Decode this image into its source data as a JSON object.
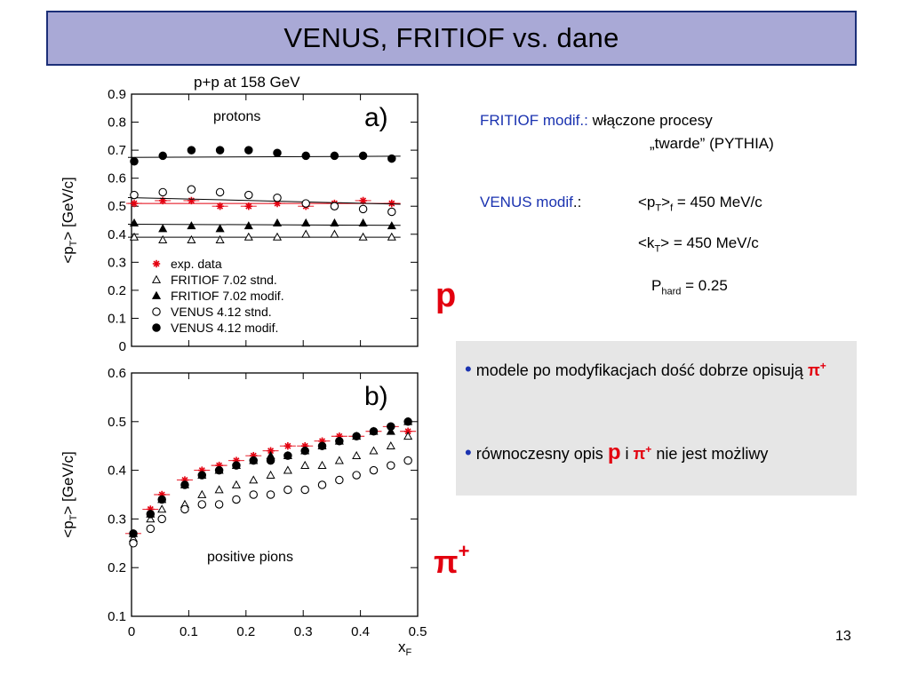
{
  "slide": {
    "title": "VENUS, FRITIOF vs. dane",
    "page_number": "13",
    "fritiof_label": "FRITIOF modif.:",
    "fritiof_text1": "włączone procesy",
    "fritiof_text2": "„twarde”  (PYTHIA)",
    "venus_label": "VENUS modif",
    "venus_colon": ".:",
    "pt_text": "<p",
    "pt_sub": "T",
    "pt_rest": ">",
    "pt_sub2": "f",
    "pt_value": " = 450 MeV/c",
    "kt_text": "<k",
    "kt_sub": "T",
    "kt_rest": ">",
    "kt_value": "  = 450 MeV/c",
    "phard_main": "P",
    "phard_sub": "hard",
    "phard_value": " = 0.25",
    "big_p": "p",
    "big_pi": "π",
    "big_pi_sup": "+",
    "bullet1_text": "modele po modyfikacjach dość dobrze opisują",
    "bullet1_pi": "π",
    "bullet1_sup": "+",
    "bullet2_pre": "równoczesny opis",
    "bullet2_p": "p",
    "bullet2_mid": "i",
    "bullet2_pi": "π",
    "bullet2_sup": "+",
    "bullet2_post": "nie jest możliwy",
    "bullet_symbol": "•"
  },
  "colors": {
    "title_bg": "#a9a9d6",
    "title_border": "#1c2f78",
    "accent_red": "#e3000f",
    "label_blue": "#1b33b0",
    "box_bg": "#e6e6e6"
  },
  "chart_data": [
    {
      "type": "scatter",
      "header": "p+p at 158 GeV",
      "panel": "a)",
      "subtitle": "protons",
      "ylabel": "<p_T> [GeV/c]",
      "ylim": [
        0,
        0.9
      ],
      "yticks": [
        "0.9",
        "0.8",
        "0.7",
        "0.6",
        "0.5",
        "0.4",
        "0.3",
        "0.2",
        "0.1",
        "0"
      ],
      "legend": [
        "exp. data",
        "FRITIOF 7.02  stnd.",
        "FRITIOF 7.02  modif.",
        "VENUS 4.12  stnd.",
        "VENUS 4.12  modif."
      ],
      "legend_position": "bottom-left",
      "series": [
        {
          "name": "exp. data",
          "marker": "star",
          "x": [
            0.0,
            0.05,
            0.1,
            0.15,
            0.2,
            0.25,
            0.3,
            0.35,
            0.4,
            0.45
          ],
          "y": [
            0.51,
            0.52,
            0.52,
            0.5,
            0.5,
            0.51,
            0.5,
            0.51,
            0.52,
            0.51
          ]
        },
        {
          "name": "FRITIOF 7.02  stnd.",
          "marker": "open-triangle",
          "x": [
            0.0,
            0.05,
            0.1,
            0.15,
            0.2,
            0.25,
            0.3,
            0.35,
            0.4,
            0.45
          ],
          "y": [
            0.39,
            0.38,
            0.38,
            0.38,
            0.39,
            0.39,
            0.4,
            0.4,
            0.39,
            0.39
          ]
        },
        {
          "name": "FRITIOF 7.02  modif.",
          "marker": "filled-triangle",
          "x": [
            0.0,
            0.05,
            0.1,
            0.15,
            0.2,
            0.25,
            0.3,
            0.35,
            0.4,
            0.45
          ],
          "y": [
            0.44,
            0.42,
            0.43,
            0.42,
            0.43,
            0.44,
            0.44,
            0.44,
            0.44,
            0.43
          ]
        },
        {
          "name": "VENUS 4.12  stnd.",
          "marker": "open-circle",
          "x": [
            0.0,
            0.05,
            0.1,
            0.15,
            0.2,
            0.25,
            0.3,
            0.35,
            0.4,
            0.45
          ],
          "y": [
            0.54,
            0.55,
            0.56,
            0.55,
            0.54,
            0.53,
            0.51,
            0.5,
            0.49,
            0.48
          ]
        },
        {
          "name": "VENUS 4.12  modif.",
          "marker": "filled-circle",
          "x": [
            0.0,
            0.05,
            0.1,
            0.15,
            0.2,
            0.25,
            0.3,
            0.35,
            0.4,
            0.45
          ],
          "y": [
            0.66,
            0.68,
            0.7,
            0.7,
            0.7,
            0.69,
            0.68,
            0.68,
            0.68,
            0.67
          ]
        }
      ]
    },
    {
      "type": "scatter",
      "panel": "b)",
      "subtitle": "positive pions",
      "ylabel": "<p_T> [GeV/c]",
      "xlabel": "x_F",
      "xlim": [
        0,
        0.5
      ],
      "ylim": [
        0.1,
        0.6
      ],
      "xticks": [
        "0",
        "0.1",
        "0.2",
        "0.3",
        "0.4",
        "0.5"
      ],
      "yticks": [
        "0.6",
        "0.5",
        "0.4",
        "0.3",
        "0.2",
        "0.1"
      ],
      "series": [
        {
          "name": "exp. data",
          "marker": "star",
          "x": [
            0.0,
            0.03,
            0.05,
            0.09,
            0.12,
            0.15,
            0.18,
            0.21,
            0.24,
            0.27,
            0.3,
            0.33,
            0.36,
            0.39,
            0.42,
            0.45,
            0.48
          ],
          "y": [
            0.27,
            0.32,
            0.35,
            0.38,
            0.4,
            0.41,
            0.42,
            0.43,
            0.44,
            0.45,
            0.45,
            0.46,
            0.47,
            0.47,
            0.48,
            0.49,
            0.48
          ]
        },
        {
          "name": "FRITIOF 7.02  stnd.",
          "marker": "open-triangle",
          "x": [
            0.0,
            0.03,
            0.05,
            0.09,
            0.12,
            0.15,
            0.18,
            0.21,
            0.24,
            0.27,
            0.3,
            0.33,
            0.36,
            0.39,
            0.42,
            0.45,
            0.48
          ],
          "y": [
            0.26,
            0.3,
            0.32,
            0.33,
            0.35,
            0.36,
            0.37,
            0.38,
            0.39,
            0.4,
            0.41,
            0.41,
            0.42,
            0.43,
            0.44,
            0.45,
            0.47
          ]
        },
        {
          "name": "FRITIOF 7.02  modif.",
          "marker": "filled-triangle",
          "x": [
            0.0,
            0.03,
            0.05,
            0.09,
            0.12,
            0.15,
            0.18,
            0.21,
            0.24,
            0.27,
            0.3,
            0.33,
            0.36,
            0.39,
            0.42,
            0.45,
            0.48
          ],
          "y": [
            0.27,
            0.31,
            0.34,
            0.37,
            0.39,
            0.4,
            0.41,
            0.42,
            0.43,
            0.43,
            0.44,
            0.45,
            0.46,
            0.47,
            0.48,
            0.48,
            0.5
          ]
        },
        {
          "name": "VENUS 4.12  stnd.",
          "marker": "open-circle",
          "x": [
            0.0,
            0.03,
            0.05,
            0.09,
            0.12,
            0.15,
            0.18,
            0.21,
            0.24,
            0.27,
            0.3,
            0.33,
            0.36,
            0.39,
            0.42,
            0.45,
            0.48
          ],
          "y": [
            0.25,
            0.28,
            0.3,
            0.32,
            0.33,
            0.33,
            0.34,
            0.35,
            0.35,
            0.36,
            0.36,
            0.37,
            0.38,
            0.39,
            0.4,
            0.41,
            0.42
          ]
        },
        {
          "name": "VENUS 4.12  modif.",
          "marker": "filled-circle",
          "x": [
            0.0,
            0.03,
            0.05,
            0.09,
            0.12,
            0.15,
            0.18,
            0.21,
            0.24,
            0.27,
            0.3,
            0.33,
            0.36,
            0.39,
            0.42,
            0.45,
            0.48
          ],
          "y": [
            0.27,
            0.31,
            0.34,
            0.37,
            0.39,
            0.4,
            0.41,
            0.42,
            0.42,
            0.43,
            0.44,
            0.45,
            0.46,
            0.47,
            0.48,
            0.49,
            0.5
          ]
        }
      ]
    }
  ]
}
